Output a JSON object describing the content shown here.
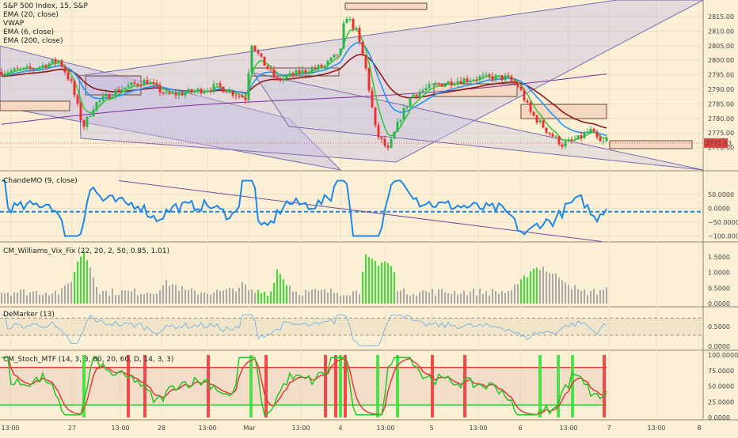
{
  "colors": {
    "background": "#fbf0d6",
    "grid": "#eadfc3",
    "price_up": "#2db54f",
    "price_down": "#ef2f2f",
    "ema20": "#2196f3",
    "vwap": "#2b2b2b",
    "ema6": "#3ac93a",
    "ema200": "#7c2b9c",
    "channel_fill": "#c7bfe3",
    "channel_line": "#7b6cb1",
    "chande_line": "#1e88e5",
    "chande_dashed": "#1e88e5",
    "vix_green": "#36e22c",
    "vix_gray": "#a9a9a9",
    "demarker": "#7fb7e0",
    "stoch_fast": "#25c425",
    "stoch_slow": "#e03a3a",
    "price_label": "#e24141"
  },
  "main_pane": {
    "legend": [
      "S&P 500 Index, 15, S&P",
      "EMA (20, close)",
      "VWAP",
      "EMA (6, close)",
      "EMA (200, close)"
    ],
    "y_ticks": [
      "2815.00",
      "2810.00",
      "2805.00",
      "2800.00",
      "2795.00",
      "2790.00",
      "2785.00",
      "2780.00",
      "2775.00",
      "2770.00"
    ],
    "last_price": "2771.53",
    "price_range": [
      2765,
      2818
    ]
  },
  "chande_pane": {
    "title": "ChandeMO (9, close)",
    "y_ticks": [
      "50.0000",
      "0.0000",
      "−50.0000",
      "−100.0000"
    ]
  },
  "vix_pane": {
    "title": "CM_Williams_Vix_Fix (22, 20, 2, 50, 0.85, 1.01)",
    "y_ticks": [
      "1.5000",
      "1.0000",
      "0.5000",
      "0.0000"
    ]
  },
  "demarker_pane": {
    "title": "DeMarker (13)",
    "y_ticks": [
      "0.5000",
      "0.0000"
    ]
  },
  "stoch_pane": {
    "title": "CM_Stoch_MTF (14, 3, 3, 80, 20, 60, D, 14, 3, 3)",
    "y_ticks": [
      "100.0000",
      "75.0000",
      "50.0000",
      "25.0000",
      "0.0000"
    ]
  },
  "x_axis": {
    "labels": [
      "13:00",
      "27",
      "13:00",
      "28",
      "13:00",
      "Mar",
      "13:00",
      "4",
      "13:00",
      "5",
      "13:00",
      "6",
      "13:00",
      "7",
      "13:00",
      "8"
    ]
  },
  "chart_data": {
    "type": "candlestick",
    "title": "S&P 500 Index, 15, S&P",
    "indicators": [
      "EMA (20, close)",
      "VWAP",
      "EMA (6, close)",
      "EMA (200, close)",
      "ChandeMO (9, close)",
      "CM_Williams_Vix_Fix",
      "DeMarker (13)",
      "CM_Stoch_MTF"
    ],
    "x": [
      "Feb 26 13:00",
      "Feb 27",
      "Feb 27 13:00",
      "Feb 28",
      "Feb 28 13:00",
      "Mar 1",
      "Mar 1 13:00",
      "Mar 4",
      "Mar 4 13:00",
      "Mar 5",
      "Mar 5 13:00",
      "Mar 6",
      "Mar 6 13:00",
      "Mar 7"
    ],
    "close_approx": [
      2796,
      2780,
      2794,
      2792,
      2789,
      2795,
      2793,
      2803,
      2773,
      2788,
      2791,
      2792,
      2775,
      2771.53
    ],
    "last_price": 2771.53,
    "ylim": [
      2765,
      2818
    ]
  }
}
